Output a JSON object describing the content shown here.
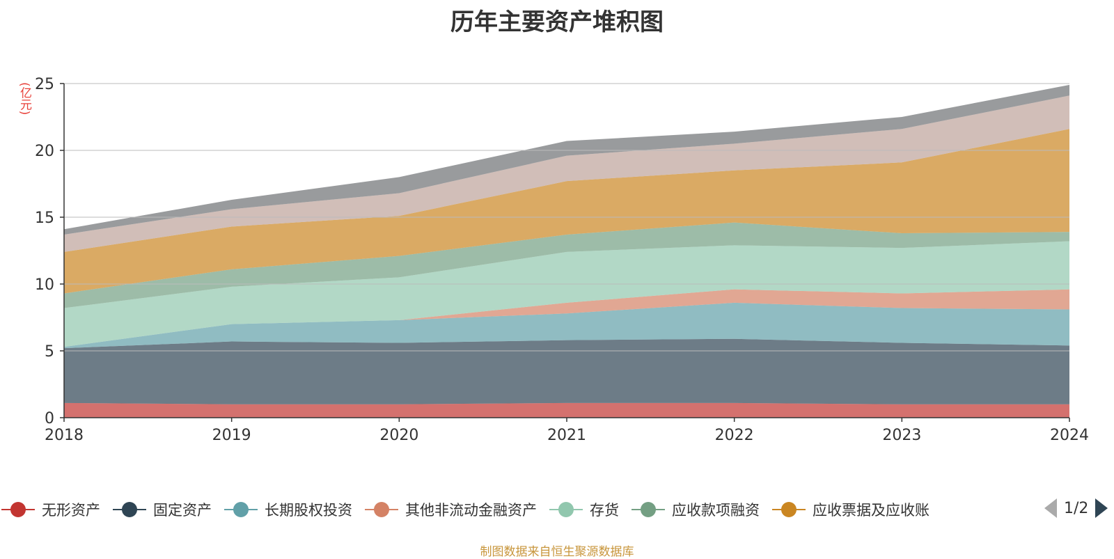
{
  "title": "历年主要资产堆积图",
  "unit": "(亿元)",
  "source": "制图数据来自恒生聚源数据库",
  "pager": {
    "text": "1/2",
    "prev_icon": "triangle-left-icon",
    "next_icon": "triangle-right-icon"
  },
  "legend": [
    {
      "label": "无形资产",
      "color": "#c23531"
    },
    {
      "label": "固定资产",
      "color": "#2f4554"
    },
    {
      "label": "长期股权投资",
      "color": "#61a0a8"
    },
    {
      "label": "其他非流动金融资产",
      "color": "#d48265"
    },
    {
      "label": "存货",
      "color": "#91c7ae"
    },
    {
      "label": "应收款项融资",
      "color": "#749f83"
    },
    {
      "label": "应收票据及应收账",
      "color": "#ca8622"
    }
  ],
  "chart_data": {
    "type": "area",
    "stacked": true,
    "title": "历年主要资产堆积图",
    "ylabel": "(亿元)",
    "x": [
      "2018",
      "2019",
      "2020",
      "2021",
      "2022",
      "2023",
      "2024"
    ],
    "ylim": [
      0,
      25
    ],
    "yticks": [
      0,
      5,
      10,
      15,
      20,
      25
    ],
    "grid": true,
    "legend_position": "bottom",
    "series": [
      {
        "name": "无形资产",
        "color": "#c23531",
        "values": [
          1.1,
          1.0,
          1.0,
          1.1,
          1.1,
          1.0,
          1.0
        ]
      },
      {
        "name": "固定资产",
        "color": "#2f4554",
        "values": [
          4.1,
          4.7,
          4.6,
          4.7,
          4.8,
          4.6,
          4.4
        ]
      },
      {
        "name": "长期股权投资",
        "color": "#61a0a8",
        "values": [
          0.1,
          1.3,
          1.7,
          2.0,
          2.7,
          2.6,
          2.7
        ]
      },
      {
        "name": "其他非流动金融资产",
        "color": "#d48265",
        "values": [
          0.0,
          0.0,
          0.0,
          0.8,
          1.0,
          1.1,
          1.5
        ]
      },
      {
        "name": "存货",
        "color": "#91c7ae",
        "values": [
          2.9,
          2.8,
          3.2,
          3.8,
          3.3,
          3.4,
          3.6
        ]
      },
      {
        "name": "应收款项融资",
        "color": "#749f83",
        "values": [
          1.1,
          1.3,
          1.6,
          1.3,
          1.7,
          1.1,
          0.7
        ]
      },
      {
        "name": "应收票据及应收账",
        "color": "#ca8622",
        "values": [
          3.1,
          3.2,
          3.0,
          4.0,
          3.9,
          5.3,
          7.7
        ]
      },
      {
        "color": "#bda29a",
        "values": [
          1.3,
          1.3,
          1.7,
          1.9,
          2.0,
          2.5,
          2.5
        ]
      },
      {
        "color": "#6e7074",
        "values": [
          0.4,
          0.7,
          1.2,
          1.1,
          0.9,
          0.9,
          0.8
        ]
      }
    ]
  }
}
